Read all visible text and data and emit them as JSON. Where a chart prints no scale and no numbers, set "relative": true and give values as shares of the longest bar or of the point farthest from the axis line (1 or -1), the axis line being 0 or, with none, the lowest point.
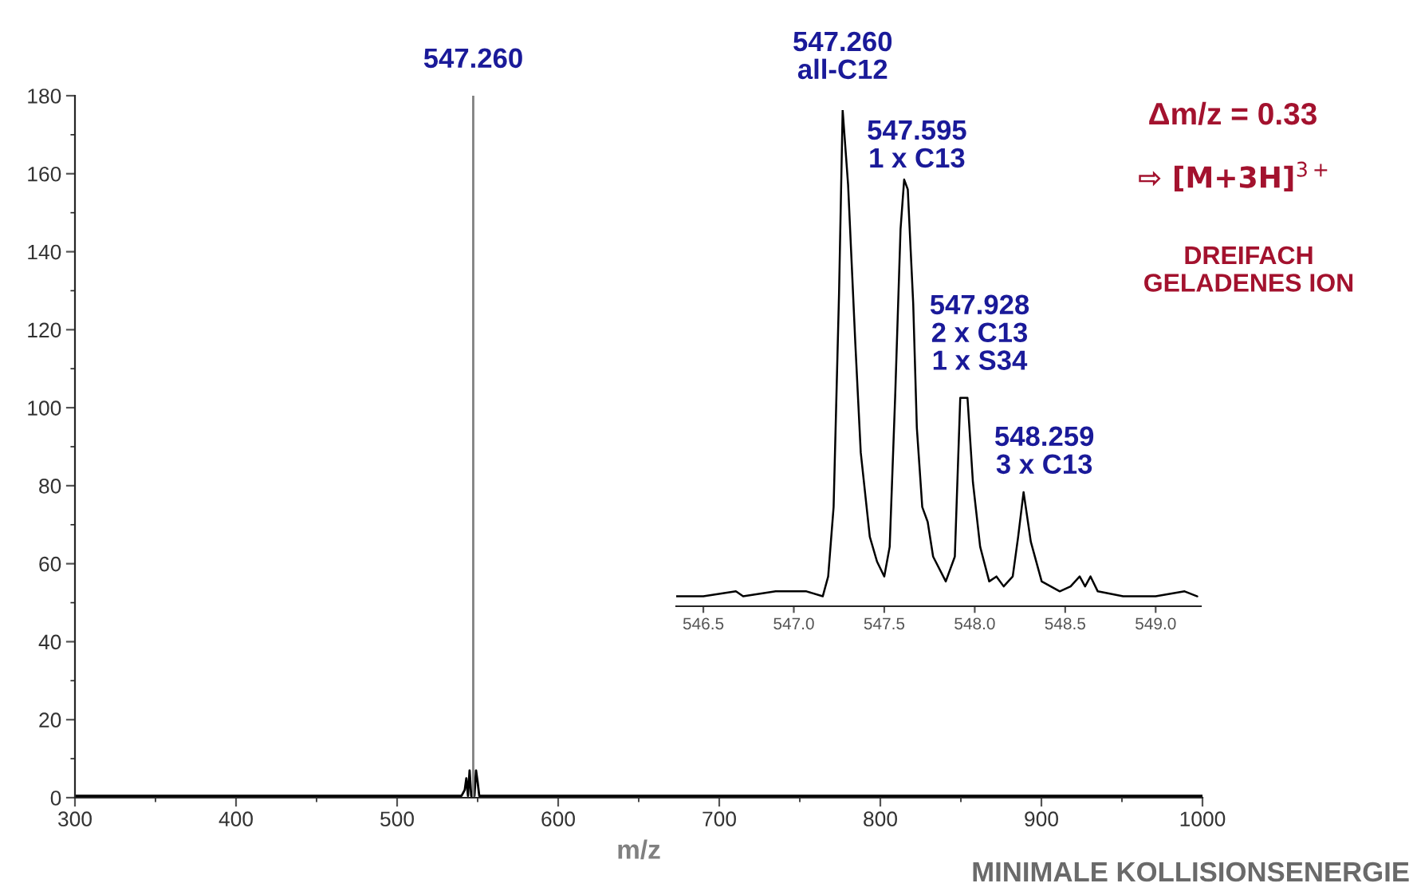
{
  "chart_data": [
    {
      "type": "line",
      "xlabel": "m/z",
      "xlim": [
        300,
        1000
      ],
      "xticks": [
        300,
        400,
        500,
        600,
        700,
        800,
        900,
        1000
      ],
      "ylim": [
        0,
        180
      ],
      "yticks": [
        0,
        20,
        40,
        60,
        80,
        100,
        120,
        140,
        160,
        180
      ],
      "grid": false,
      "legend": false,
      "series": [
        {
          "color": "#000000",
          "x": [
            300,
            320,
            400,
            500,
            540,
            542,
            543,
            544,
            545,
            546,
            548,
            549,
            550,
            551,
            600,
            700,
            800,
            900,
            1000
          ],
          "values": [
            0.5,
            0.5,
            0.5,
            0.5,
            0.5,
            2,
            5,
            0.5,
            7,
            0.5,
            0.5,
            7,
            4,
            0.5,
            0.5,
            0.5,
            0.5,
            0.5,
            0.5
          ]
        },
        {
          "color": "#808080",
          "x": [
            547.26,
            547.26
          ],
          "values": [
            0,
            180
          ]
        }
      ],
      "annotations": [
        {
          "text": "547.260",
          "x": 547.26,
          "y": 180
        },
        "MINIMALE KOLLISIONSENERGIE"
      ]
    },
    {
      "type": "line",
      "relative": true,
      "xlim": [
        546.35,
        549.25
      ],
      "xticks": [
        546.5,
        {
          "value": 547,
          "label": "547.0"
        },
        547.5,
        {
          "value": 548,
          "label": "548.0"
        },
        548.5,
        {
          "value": 549,
          "label": "549.0"
        }
      ],
      "tick_labels": "x",
      "grid": false,
      "legend": false,
      "series": [
        {
          "color": "#000000",
          "x": [
            546.35,
            546.5,
            546.68,
            546.72,
            546.9,
            547.07,
            547.16,
            547.19,
            547.22,
            547.25,
            547.27,
            547.3,
            547.34,
            547.37,
            547.42,
            547.46,
            547.5,
            547.53,
            547.56,
            547.59,
            547.61,
            547.63,
            547.66,
            547.68,
            547.71,
            547.74,
            547.77,
            547.84,
            547.89,
            547.92,
            547.93,
            547.96,
            547.99,
            548.03,
            548.08,
            548.12,
            548.16,
            548.21,
            548.24,
            548.27,
            548.31,
            548.37,
            548.47,
            548.53,
            548.58,
            548.61,
            548.64,
            548.68,
            548.82,
            549.0,
            549.16,
            549.23
          ],
          "values": [
            0.02,
            0.02,
            0.03,
            0.02,
            0.03,
            0.03,
            0.02,
            0.06,
            0.2,
            0.63,
            1.0,
            0.85,
            0.53,
            0.31,
            0.14,
            0.09,
            0.06,
            0.12,
            0.42,
            0.76,
            0.86,
            0.84,
            0.61,
            0.36,
            0.2,
            0.17,
            0.1,
            0.05,
            0.1,
            0.42,
            0.42,
            0.42,
            0.25,
            0.12,
            0.05,
            0.06,
            0.04,
            0.06,
            0.14,
            0.23,
            0.13,
            0.05,
            0.03,
            0.04,
            0.06,
            0.04,
            0.06,
            0.03,
            0.02,
            0.02,
            0.03,
            0.02
          ]
        }
      ],
      "annotations": [
        {
          "text": "547.260\nall-C12",
          "x": 547.27,
          "y": 1.0
        },
        {
          "text": "547.595\n1 x C13",
          "x": 547.61,
          "y": 0.86
        },
        {
          "text": "547.928\n2 x C13\n1 x S34",
          "x": 547.93,
          "y": 0.42
        },
        {
          "text": "548.259\n3 x C13",
          "x": 548.27,
          "y": 0.23
        },
        "Δm/z = 0.33",
        "⇨ [M+3H]$^{3+}$",
        "DREIFACH\nGELADENES ION"
      ]
    }
  ]
}
